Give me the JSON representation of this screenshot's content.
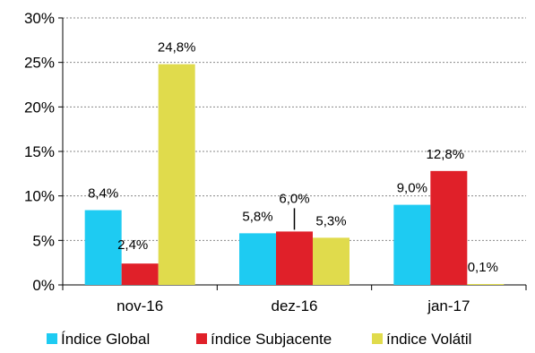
{
  "chart_data": {
    "type": "bar",
    "categories": [
      "nov-16",
      "dez-16",
      "jan-17"
    ],
    "series": [
      {
        "name": "Índice Global",
        "values": [
          8.4,
          5.8,
          9.0
        ],
        "labels": [
          "8,4%",
          "5,8%",
          "9,0%"
        ],
        "color": "#1ECBF2"
      },
      {
        "name": "índice Subjacente",
        "values": [
          2.4,
          6.0,
          12.8
        ],
        "labels": [
          "2,4%",
          "6,0%",
          "12,8%"
        ],
        "color": "#E02029"
      },
      {
        "name": "índice Volátil",
        "values": [
          24.8,
          5.3,
          0.1
        ],
        "labels": [
          "24,8%",
          "5,3%",
          "0,1%"
        ],
        "color": "#E0DB4C"
      }
    ],
    "ylim": [
      0,
      30
    ],
    "yticks": [
      0,
      5,
      10,
      15,
      20,
      25,
      30
    ],
    "ytick_labels": [
      "0%",
      "5%",
      "10%",
      "15%",
      "20%",
      "25%",
      "30%"
    ],
    "grid": true,
    "legend": "bottom",
    "title": "",
    "xlabel": "",
    "ylabel": ""
  }
}
